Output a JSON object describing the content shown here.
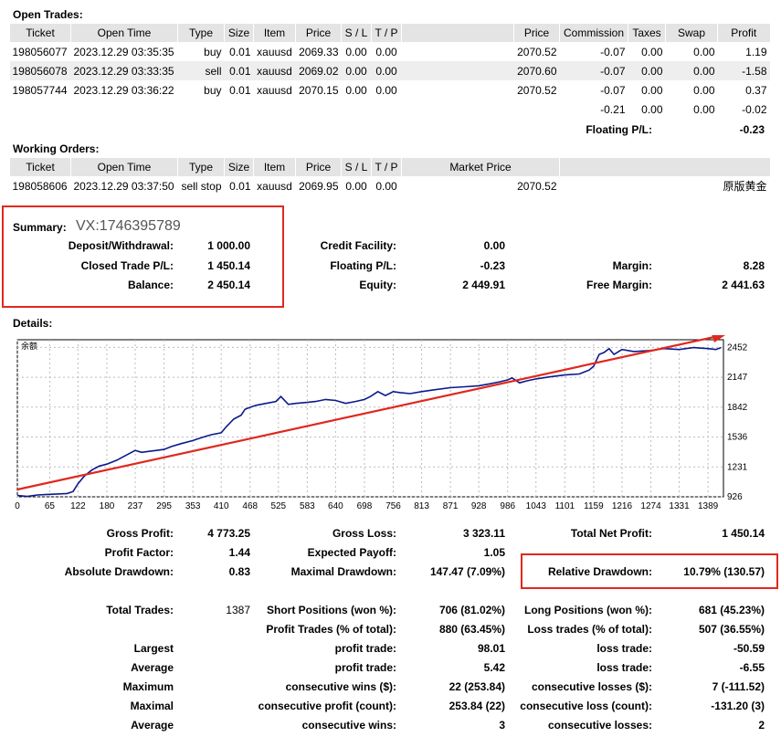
{
  "open_trades": {
    "title": "Open Trades:",
    "headers": [
      "Ticket",
      "Open Time",
      "Type",
      "Size",
      "Item",
      "Price",
      "S / L",
      "T / P",
      "",
      "Price",
      "Commission",
      "Taxes",
      "Swap",
      "Profit"
    ],
    "rows": [
      [
        "198056077",
        "2023.12.29 03:35:35",
        "buy",
        "0.01",
        "xauusd",
        "2069.33",
        "0.00",
        "0.00",
        "",
        "2070.52",
        "-0.07",
        "0.00",
        "0.00",
        "1.19"
      ],
      [
        "198056078",
        "2023.12.29 03:33:35",
        "sell",
        "0.01",
        "xauusd",
        "2069.02",
        "0.00",
        "0.00",
        "",
        "2070.60",
        "-0.07",
        "0.00",
        "0.00",
        "-1.58"
      ],
      [
        "198057744",
        "2023.12.29 03:36:22",
        "buy",
        "0.01",
        "xauusd",
        "2070.15",
        "0.00",
        "0.00",
        "",
        "2070.52",
        "-0.07",
        "0.00",
        "0.00",
        "0.37"
      ]
    ],
    "totals": {
      "commission": "-0.21",
      "taxes": "0.00",
      "swap": "0.00",
      "profit": "-0.02"
    },
    "floating_label": "Floating P/L:",
    "floating_value": "-0.23"
  },
  "working_orders": {
    "title": "Working Orders:",
    "headers": [
      "Ticket",
      "Open Time",
      "Type",
      "Size",
      "Item",
      "Price",
      "S / L",
      "T / P",
      "Market Price",
      ""
    ],
    "rows": [
      [
        "198058606",
        "2023.12.29 03:37:50",
        "sell stop",
        "0.01",
        "xauusd",
        "2069.95",
        "0.00",
        "0.00",
        "2070.52",
        "原版黄金"
      ]
    ]
  },
  "summary": {
    "title": "Summary:",
    "watermark": "VX:1746395789",
    "deposit_label": "Deposit/Withdrawal:",
    "deposit_value": "1 000.00",
    "credit_label": "Credit Facility:",
    "credit_value": "0.00",
    "closed_label": "Closed Trade P/L:",
    "closed_value": "1 450.14",
    "floating_label": "Floating P/L:",
    "floating_value": "-0.23",
    "margin_label": "Margin:",
    "margin_value": "8.28",
    "balance_label": "Balance:",
    "balance_value": "2 450.14",
    "equity_label": "Equity:",
    "equity_value": "2 449.91",
    "free_margin_label": "Free Margin:",
    "free_margin_value": "2 441.63"
  },
  "details": {
    "title": "Details:",
    "chart_data": {
      "type": "line",
      "legend": "余额",
      "x_ticks": [
        0,
        65,
        122,
        180,
        237,
        295,
        353,
        410,
        468,
        525,
        583,
        640,
        698,
        756,
        813,
        871,
        928,
        986,
        1043,
        1101,
        1159,
        1216,
        1274,
        1331,
        1389
      ],
      "y_ticks": [
        926,
        1231,
        1536,
        1842,
        2147,
        2452
      ],
      "xlim": [
        0,
        1420
      ],
      "ylim": [
        926,
        2530
      ],
      "series": [
        {
          "x": [
            0,
            20,
            40,
            60,
            80,
            100,
            112,
            122,
            135,
            150,
            165,
            180,
            200,
            215,
            237,
            250,
            265,
            280,
            295,
            310,
            330,
            353,
            370,
            390,
            410,
            420,
            435,
            450,
            458,
            468,
            480,
            500,
            520,
            530,
            545,
            560,
            583,
            600,
            620,
            640,
            660,
            680,
            698,
            710,
            725,
            740,
            748,
            756,
            770,
            790,
            813,
            840,
            871,
            900,
            928,
            950,
            970,
            986,
            995,
            1010,
            1025,
            1043,
            1070,
            1101,
            1130,
            1150,
            1159,
            1170,
            1180,
            1190,
            1200,
            1216,
            1240,
            1274,
            1300,
            1331,
            1360,
            1389,
            1405,
            1415
          ],
          "y": [
            940,
            930,
            945,
            950,
            955,
            960,
            980,
            1060,
            1140,
            1200,
            1240,
            1260,
            1300,
            1340,
            1400,
            1380,
            1390,
            1400,
            1410,
            1440,
            1470,
            1500,
            1530,
            1560,
            1580,
            1640,
            1720,
            1760,
            1820,
            1840,
            1860,
            1880,
            1900,
            1950,
            1870,
            1880,
            1890,
            1900,
            1920,
            1910,
            1880,
            1900,
            1920,
            1950,
            2000,
            1960,
            1980,
            2000,
            1990,
            1980,
            2000,
            2020,
            2040,
            2050,
            2060,
            2080,
            2100,
            2120,
            2140,
            2090,
            2110,
            2130,
            2150,
            2170,
            2180,
            2220,
            2260,
            2380,
            2400,
            2440,
            2380,
            2430,
            2410,
            2420,
            2440,
            2430,
            2450,
            2440,
            2430,
            2450
          ]
        }
      ]
    }
  },
  "stats": {
    "gross_profit_label": "Gross Profit:",
    "gross_profit_value": "4 773.25",
    "gross_loss_label": "Gross Loss:",
    "gross_loss_value": "3 323.11",
    "total_net_label": "Total Net Profit:",
    "total_net_value": "1 450.14",
    "profit_factor_label": "Profit Factor:",
    "profit_factor_value": "1.44",
    "expected_payoff_label": "Expected Payoff:",
    "expected_payoff_value": "1.05",
    "abs_dd_label": "Absolute Drawdown:",
    "abs_dd_value": "0.83",
    "max_dd_label": "Maximal Drawdown:",
    "max_dd_value": "147.47 (7.09%)",
    "rel_dd_label": "Relative Drawdown:",
    "rel_dd_value": "10.79% (130.57)",
    "total_trades_label": "Total Trades:",
    "total_trades_value": "1387",
    "short_label": "Short Positions (won %):",
    "short_value": "706 (81.02%)",
    "long_label": "Long Positions (won %):",
    "long_value": "681 (45.23%)",
    "profit_trades_label": "Profit Trades (% of total):",
    "profit_trades_value": "880 (63.45%)",
    "loss_trades_label": "Loss trades (% of total):",
    "loss_trades_value": "507 (36.55%)",
    "rows": [
      {
        "name": "Largest",
        "a_label": "profit trade:",
        "a_value": "98.01",
        "b_label": "loss trade:",
        "b_value": "-50.59"
      },
      {
        "name": "Average",
        "a_label": "profit trade:",
        "a_value": "5.42",
        "b_label": "loss trade:",
        "b_value": "-6.55"
      },
      {
        "name": "Maximum",
        "a_label": "consecutive wins ($):",
        "a_value": "22 (253.84)",
        "b_label": "consecutive losses ($):",
        "b_value": "7 (-111.52)"
      },
      {
        "name": "Maximal",
        "a_label": "consecutive profit (count):",
        "a_value": "253.84 (22)",
        "b_label": "consecutive loss (count):",
        "b_value": "-131.20 (3)"
      },
      {
        "name": "Average",
        "a_label": "consecutive wins:",
        "a_value": "3",
        "b_label": "consecutive losses:",
        "b_value": "2"
      }
    ]
  },
  "colors": {
    "header_bg": "#e4e4e4",
    "alt_row": "#eeeeee",
    "line": "#0a1a8c",
    "trend": "#e0281e",
    "box": "#e0281e"
  }
}
